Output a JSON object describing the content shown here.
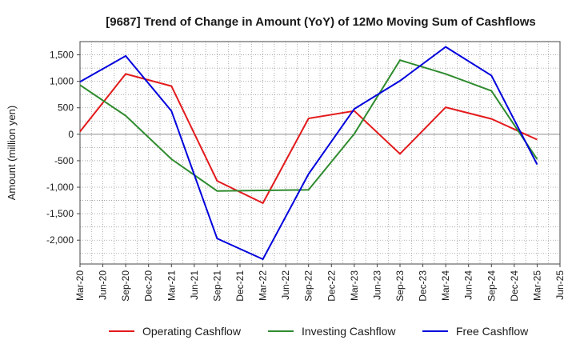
{
  "chart_data": {
    "type": "line",
    "title": "[9687]  Trend of Change in Amount (YoY) of 12Mo Moving Sum of Cashflows",
    "xlabel": "",
    "ylabel": "Amount (million yen)",
    "ylim": [
      -2450,
      1750
    ],
    "yticks": [
      1500,
      1000,
      500,
      0,
      -500,
      -1000,
      -1500,
      -2000
    ],
    "ytick_labels": [
      "1,500",
      "1,000",
      "500",
      "0",
      "-500",
      "-1,000",
      "-1,500",
      "-2,000"
    ],
    "categories": [
      "Mar-20",
      "Jun-20",
      "Sep-20",
      "Dec-20",
      "Mar-21",
      "Jun-21",
      "Sep-21",
      "Dec-21",
      "Mar-22",
      "Jun-22",
      "Sep-22",
      "Dec-22",
      "Mar-23",
      "Jun-23",
      "Sep-23",
      "Dec-23",
      "Mar-24",
      "Jun-24",
      "Sep-24",
      "Dec-24",
      "Mar-25",
      "Jun-25"
    ],
    "grid": true,
    "legend_position": "bottom",
    "series": [
      {
        "name": "Operating Cashflow",
        "color": "#e31a1c",
        "values": [
          50,
          null,
          1140,
          null,
          910,
          null,
          -880,
          null,
          -1300,
          null,
          300,
          null,
          440,
          null,
          -370,
          null,
          510,
          null,
          290,
          null,
          -100,
          null
        ]
      },
      {
        "name": "Investing Cashflow",
        "color": "#2e8b2e",
        "values": [
          930,
          null,
          350,
          null,
          -470,
          null,
          -1070,
          null,
          -1060,
          null,
          -1050,
          null,
          10,
          null,
          1400,
          null,
          1140,
          null,
          820,
          null,
          -470,
          null
        ]
      },
      {
        "name": "Free Cashflow",
        "color": "#0000dd",
        "values": [
          990,
          null,
          1480,
          null,
          440,
          null,
          -1970,
          null,
          -2360,
          null,
          -750,
          null,
          480,
          null,
          1010,
          null,
          1650,
          null,
          1110,
          null,
          -570,
          null
        ]
      }
    ]
  }
}
